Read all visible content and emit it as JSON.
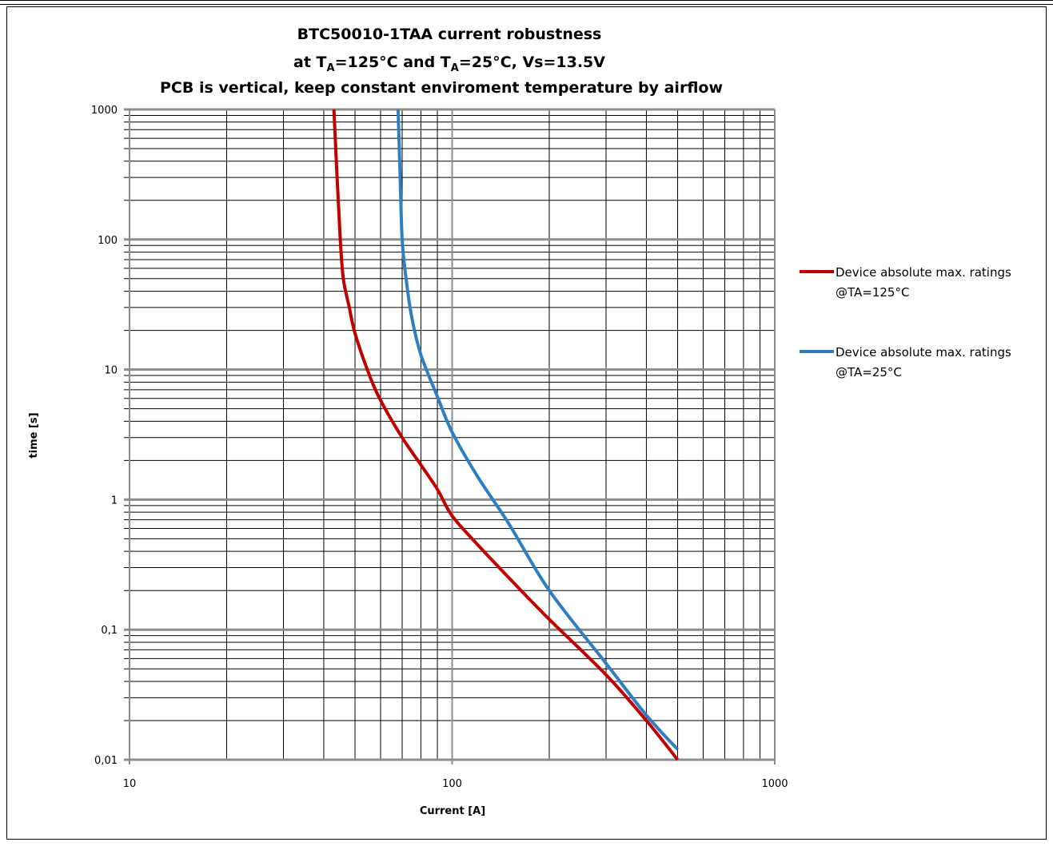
{
  "chart_data": {
    "type": "line",
    "title_line1": "BTC50010-1TAA current robustness",
    "title_line2": {
      "prefix": "at T",
      "sub1": "A",
      "mid": "=125°C and T",
      "sub2": "A",
      "suffix": "=25°C,  Vs=13.5V"
    },
    "title_line3": "PCB is vertical, keep constant enviroment temperature by airflow",
    "xlabel": "Current [A]",
    "ylabel": "time [s]",
    "x_scale": "log",
    "y_scale": "log",
    "xlim": [
      10,
      1000
    ],
    "ylim": [
      0.01,
      1000
    ],
    "x_ticks": [
      "10",
      "100",
      "1000"
    ],
    "y_ticks": [
      "0,01",
      "0,1",
      "1",
      "10",
      "100",
      "1000"
    ],
    "grid": true,
    "legend_position": "right",
    "series": [
      {
        "name": "Device absolute max. ratings\n@TA=125°C",
        "legend_line1": "Device absolute max. ratings",
        "legend_line2": "@TA=125°C",
        "color": "#c00000",
        "x": [
          43,
          44,
          45,
          46,
          48,
          50,
          55,
          60,
          70,
          80,
          90,
          100,
          120,
          150,
          200,
          300,
          400,
          500
        ],
        "y": [
          1000,
          300,
          100,
          50,
          30,
          19,
          9.5,
          5.8,
          3.0,
          1.85,
          1.2,
          0.75,
          0.45,
          0.25,
          0.12,
          0.045,
          0.02,
          0.01
        ]
      },
      {
        "name": "Device absolute max. ratings\n@TA=25°C",
        "legend_line1": "Device absolute max. ratings",
        "legend_line2": "@TA=25°C",
        "color": "#2f7fc0",
        "x": [
          68,
          69,
          70,
          72,
          75,
          80,
          90,
          100,
          120,
          150,
          200,
          300,
          400,
          500
        ],
        "y": [
          1000,
          300,
          100,
          50,
          25,
          13,
          6.2,
          3.3,
          1.5,
          0.65,
          0.2,
          0.055,
          0.022,
          0.012
        ]
      }
    ]
  }
}
